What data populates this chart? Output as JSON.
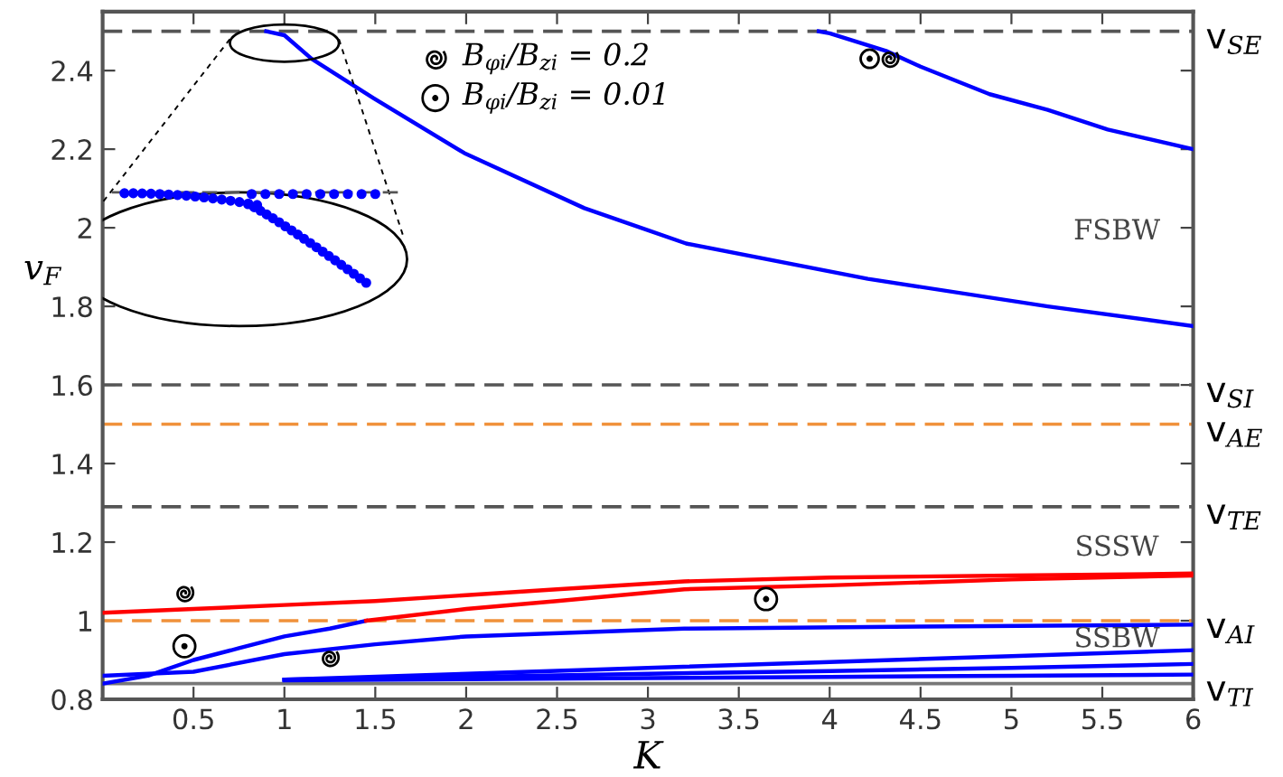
{
  "chart_data": {
    "type": "line",
    "xlabel": "K",
    "ylabel": "v$_{F}$",
    "xlim": [
      0,
      6
    ],
    "ylim": [
      0.8,
      2.55
    ],
    "xticks": [
      0.5,
      1,
      1.5,
      2,
      2.5,
      3,
      3.5,
      4,
      4.5,
      5,
      5.5,
      6
    ],
    "yticks": [
      0.8,
      1,
      1.2,
      1.4,
      1.6,
      1.8,
      2,
      2.2,
      2.4
    ],
    "grid": false,
    "series": [
      {
        "color": "#0000ff",
        "x": [
          3.94,
          4.0,
          4.31,
          4.5,
          4.88,
          5.2,
          5.53,
          6.0
        ],
        "values": [
          2.5,
          2.495,
          2.45,
          2.41,
          2.34,
          2.3,
          2.25,
          2.2
        ]
      },
      {
        "color": "#0000ff",
        "x": [
          0.9,
          1.0,
          1.15,
          1.49,
          1.99,
          2.65,
          3.21,
          4.21,
          5.2,
          6.0
        ],
        "values": [
          2.5,
          2.49,
          2.43,
          2.33,
          2.19,
          2.05,
          1.96,
          1.87,
          1.8,
          1.75
        ]
      },
      {
        "color": "#ff0000",
        "x": [
          0,
          0.5,
          1,
          1.5,
          2,
          2.5,
          3.2,
          4,
          5,
          6
        ],
        "values": [
          1.02,
          1.03,
          1.04,
          1.05,
          1.065,
          1.08,
          1.1,
          1.11,
          1.115,
          1.12
        ]
      },
      {
        "color": "#0000ff",
        "x": [
          0,
          0.25,
          0.5,
          0.75,
          1,
          1.25,
          1.45
        ],
        "values": [
          0.84,
          0.86,
          0.9,
          0.93,
          0.96,
          0.98,
          1.0
        ]
      },
      {
        "color": "#ff0000",
        "x": [
          1.45,
          2,
          2.5,
          3.2,
          4,
          5,
          6
        ],
        "values": [
          1.0,
          1.03,
          1.05,
          1.08,
          1.09,
          1.105,
          1.115
        ]
      },
      {
        "color": "#0000ff",
        "x": [
          0,
          0.5,
          1,
          1.5,
          2,
          3.2,
          4.5,
          6
        ],
        "values": [
          0.86,
          0.87,
          0.915,
          0.94,
          0.96,
          0.98,
          0.985,
          0.99
        ]
      },
      {
        "color": "#0000ff",
        "x": [
          1,
          2,
          3,
          4,
          5,
          6
        ],
        "values": [
          0.85,
          0.865,
          0.88,
          0.895,
          0.91,
          0.925
        ]
      },
      {
        "color": "#0000ff",
        "x": [
          1,
          2,
          3,
          4,
          5,
          6
        ],
        "values": [
          0.85,
          0.857,
          0.865,
          0.872,
          0.88,
          0.89
        ]
      },
      {
        "color": "#0000ff",
        "x": [
          1,
          2,
          3,
          4,
          5,
          6
        ],
        "values": [
          0.848,
          0.851,
          0.854,
          0.857,
          0.86,
          0.863
        ]
      }
    ],
    "ref_lines": [
      {
        "axis": "y",
        "value": 2.5,
        "label": "v$_{SE}$",
        "color": "#555555",
        "line_style": "dashed"
      },
      {
        "axis": "y",
        "value": 1.6,
        "label": "v$_{SI}$",
        "color": "#555555",
        "line_style": "dashed"
      },
      {
        "axis": "y",
        "value": 1.5,
        "label": "v$_{AE}$",
        "color": "#f0913a",
        "line_style": "dashed"
      },
      {
        "axis": "y",
        "value": 1.29,
        "label": "v$_{TE}$",
        "color": "#555555",
        "line_style": "dashed"
      },
      {
        "axis": "y",
        "value": 1.0,
        "label": "v$_{AI}$",
        "color": "#f0913a",
        "line_style": "dashed"
      },
      {
        "axis": "y",
        "value": 0.84,
        "label": "v$_{TI}$",
        "color": "#777777",
        "line_style": "solid"
      }
    ],
    "annotations": [
      "FSBW",
      "SSSW",
      "SSBW",
      "B$_{φi}$/B$_{zi}$ = 0.2",
      "B$_{φi}$/B$_{zi}$ = 0.01"
    ]
  }
}
